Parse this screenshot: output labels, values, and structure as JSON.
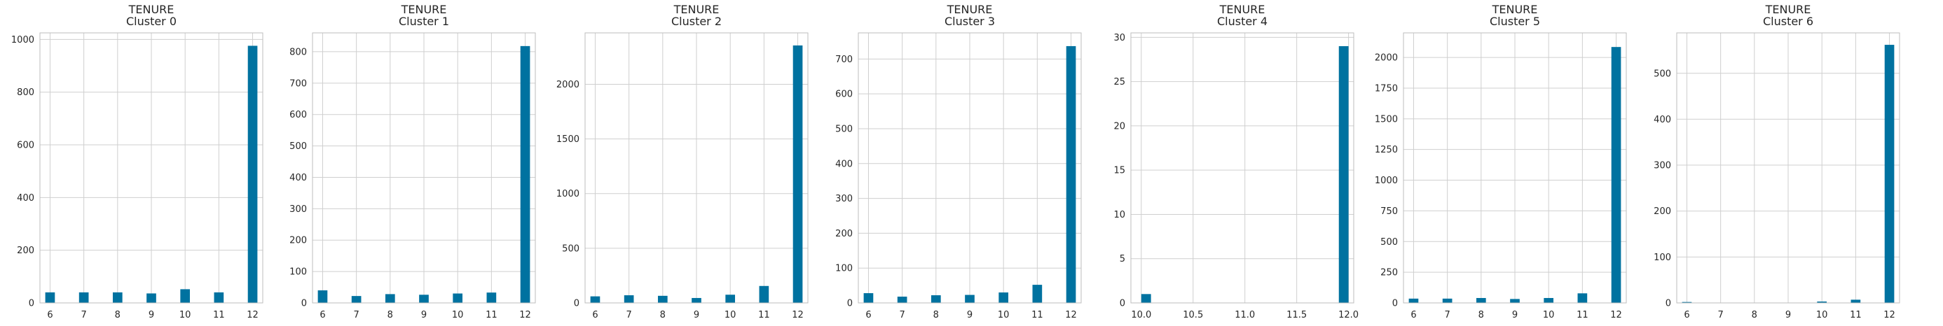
{
  "chart_data": [
    {
      "type": "bar",
      "title": "TENURE\nCluster 0",
      "xlim": [
        5.7,
        12.3
      ],
      "xticks": [
        6,
        7,
        8,
        9,
        10,
        11,
        12
      ],
      "ylim": [
        0,
        1025
      ],
      "yticks": [
        0,
        200,
        400,
        600,
        800,
        1000
      ],
      "x": [
        6,
        7,
        8,
        9,
        10,
        11,
        12
      ],
      "values": [
        40,
        40,
        40,
        36,
        52,
        40,
        976
      ],
      "color": "#0072a0",
      "grid": true
    },
    {
      "type": "bar",
      "title": "TENURE\nCluster 1",
      "xlim": [
        5.7,
        12.3
      ],
      "xticks": [
        6,
        7,
        8,
        9,
        10,
        11,
        12
      ],
      "ylim": [
        0,
        860
      ],
      "yticks": [
        0,
        100,
        200,
        300,
        400,
        500,
        600,
        700,
        800
      ],
      "x": [
        6,
        7,
        8,
        9,
        10,
        11,
        12
      ],
      "values": [
        40,
        22,
        28,
        26,
        30,
        33,
        818
      ],
      "color": "#0072a0",
      "grid": true
    },
    {
      "type": "bar",
      "title": "TENURE\nCluster 2",
      "xlim": [
        5.7,
        12.3
      ],
      "xticks": [
        6,
        7,
        8,
        9,
        10,
        11,
        12
      ],
      "ylim": [
        0,
        2470
      ],
      "yticks": [
        0,
        500,
        1000,
        1500,
        2000
      ],
      "x": [
        6,
        7,
        8,
        9,
        10,
        11,
        12
      ],
      "values": [
        60,
        70,
        65,
        45,
        75,
        155,
        2355
      ],
      "color": "#0072a0",
      "grid": true
    },
    {
      "type": "bar",
      "title": "TENURE\nCluster 3",
      "xlim": [
        5.7,
        12.3
      ],
      "xticks": [
        6,
        7,
        8,
        9,
        10,
        11,
        12
      ],
      "ylim": [
        0,
        775
      ],
      "yticks": [
        0,
        100,
        200,
        300,
        400,
        500,
        600,
        700
      ],
      "x": [
        6,
        7,
        8,
        9,
        10,
        11,
        12
      ],
      "values": [
        28,
        18,
        22,
        23,
        30,
        52,
        737
      ],
      "color": "#0072a0",
      "grid": true
    },
    {
      "type": "bar",
      "title": "TENURE\nCluster 4",
      "xlim": [
        9.9,
        12.05
      ],
      "xticks": [
        "10.0",
        "10.5",
        "11.0",
        "11.5",
        "12.0"
      ],
      "ylim": [
        0,
        30.5
      ],
      "yticks": [
        0,
        5,
        10,
        15,
        20,
        25,
        30
      ],
      "x": [
        10,
        12
      ],
      "values": [
        1,
        29
      ],
      "color": "#0072a0",
      "grid": true
    },
    {
      "type": "bar",
      "title": "TENURE\nCluster 5",
      "xlim": [
        5.7,
        12.3
      ],
      "xticks": [
        6,
        7,
        8,
        9,
        10,
        11,
        12
      ],
      "ylim": [
        0,
        2200
      ],
      "yticks": [
        "0",
        "250",
        "500",
        "750",
        "1000",
        "1250",
        "1500",
        "1750",
        "2000"
      ],
      "x": [
        6,
        7,
        8,
        9,
        10,
        11,
        12
      ],
      "values": [
        35,
        35,
        40,
        32,
        40,
        78,
        2085
      ],
      "color": "#0072a0",
      "grid": true
    },
    {
      "type": "bar",
      "title": "TENURE\nCluster 6",
      "xlim": [
        5.7,
        12.3
      ],
      "xticks": [
        6,
        7,
        8,
        9,
        10,
        11,
        12
      ],
      "ylim": [
        0,
        588
      ],
      "yticks": [
        0,
        100,
        200,
        300,
        400,
        500
      ],
      "x": [
        6,
        10,
        11,
        12
      ],
      "values": [
        2,
        3,
        7,
        562
      ],
      "color": "#0072a0",
      "grid": true
    }
  ]
}
